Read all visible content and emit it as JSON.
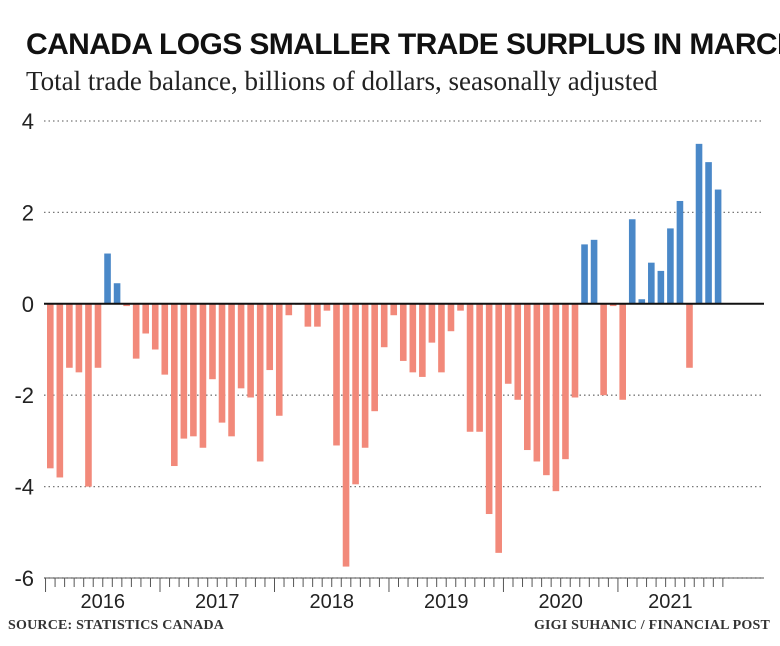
{
  "chart_data": {
    "type": "bar",
    "title": "CANADA LOGS SMALLER TRADE SURPLUS IN MARCH",
    "subtitle": "Total trade balance, billions of dollars, seasonally adjusted",
    "ylim": [
      -6,
      4
    ],
    "yticks": [
      "4",
      "2",
      "0",
      "-2",
      "-4",
      "-6"
    ],
    "grid": true,
    "year_labels": [
      "2016",
      "2017",
      "2018",
      "2019",
      "2020",
      "2021"
    ],
    "months_per_year": 12,
    "values": [
      -3.6,
      -3.8,
      -1.4,
      -1.5,
      -4.0,
      -1.4,
      1.1,
      0.45,
      -0.05,
      -1.2,
      -0.65,
      -1.0,
      -1.55,
      -3.55,
      -2.95,
      -2.9,
      -3.15,
      -1.65,
      -2.6,
      -2.9,
      -1.85,
      -2.05,
      -3.45,
      -1.45,
      -2.45,
      -0.25,
      -0.02,
      -0.5,
      -0.5,
      -0.15,
      -3.1,
      -5.75,
      -3.95,
      -3.15,
      -2.35,
      -0.95,
      -0.25,
      -1.25,
      -1.5,
      -1.6,
      -0.85,
      -1.5,
      -0.6,
      -0.15,
      -2.8,
      -2.8,
      -4.6,
      -5.45,
      -1.75,
      -2.1,
      -3.2,
      -3.45,
      -3.75,
      -4.1,
      -3.4,
      -2.05,
      1.3,
      1.4,
      -2.0,
      -0.05,
      -2.1,
      1.85,
      0.1,
      0.9,
      0.72,
      1.65,
      2.25,
      -1.4,
      3.5,
      3.1,
      2.5
    ],
    "positive_color": "#4a88c8",
    "negative_color": "#f2897a",
    "source": "SOURCE: STATISTICS CANADA",
    "credit": "GIGI SUHANIC / FINANCIAL POST"
  }
}
